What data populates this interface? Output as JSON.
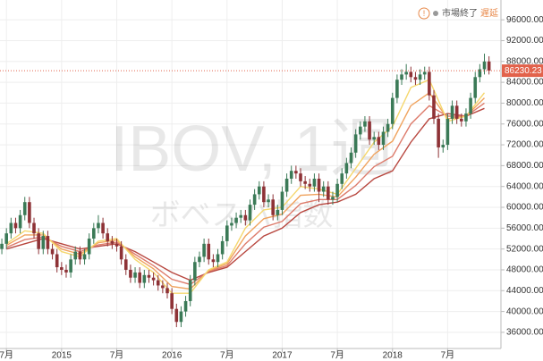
{
  "chart_data": {
    "type": "candlestick",
    "watermark": "IBOV, 1週",
    "watermark_sub": "ボベスパ指数",
    "alert_icon": "!",
    "status": "市場終了",
    "delay": "遅延",
    "up_color": "#3b7a57",
    "down_color": "#8e3236",
    "last_color": "#e2624b",
    "grid": true,
    "xlim": [
      -0.7,
      53.8
    ],
    "ylim": [
      32900,
      99800
    ],
    "xticks": [
      {
        "value": 0,
        "label": "7月"
      },
      {
        "value": 6,
        "label": "2015"
      },
      {
        "value": 12,
        "label": "7月"
      },
      {
        "value": 18,
        "label": "2016"
      },
      {
        "value": 24,
        "label": "7月"
      },
      {
        "value": 30,
        "label": "2017"
      },
      {
        "value": 36,
        "label": "7月"
      },
      {
        "value": 42,
        "label": "2018"
      },
      {
        "value": 48,
        "label": "7月"
      }
    ],
    "yticks": [
      {
        "value": 36000,
        "label": "36000.00"
      },
      {
        "value": 40000,
        "label": "40000.00"
      },
      {
        "value": 44000,
        "label": "44000.00"
      },
      {
        "value": 48000,
        "label": "48000.00"
      },
      {
        "value": 52000,
        "label": "52000.00"
      },
      {
        "value": 56000,
        "label": "56000.00"
      },
      {
        "value": 60000,
        "label": "60000.00"
      },
      {
        "value": 64000,
        "label": "64000.00"
      },
      {
        "value": 68000,
        "label": "68000.00"
      },
      {
        "value": 72000,
        "label": "72000.00"
      },
      {
        "value": 76000,
        "label": "76000.00"
      },
      {
        "value": 80000,
        "label": "80000.00"
      },
      {
        "value": 84000,
        "label": "84000.00"
      },
      {
        "value": 88000,
        "label": "88000.00"
      },
      {
        "value": 92000,
        "label": "92000.00"
      },
      {
        "value": 96000,
        "label": "96000.00"
      }
    ],
    "x": [
      -0.5,
      0,
      0.5,
      1,
      1.5,
      2,
      2.5,
      3,
      3.5,
      4,
      4.5,
      5,
      5.5,
      6,
      6.5,
      7,
      7.5,
      8,
      8.5,
      9,
      9.5,
      10,
      10.5,
      11,
      11.5,
      12,
      12.5,
      13,
      13.5,
      14,
      14.5,
      15,
      15.5,
      16,
      16.5,
      17,
      17.5,
      18,
      18.5,
      19,
      19.5,
      20,
      20.5,
      21,
      21.5,
      22,
      22.5,
      23,
      23.5,
      24,
      24.5,
      25,
      25.5,
      26,
      26.5,
      27,
      27.5,
      28,
      28.5,
      29,
      29.5,
      30,
      30.5,
      31,
      31.5,
      32,
      32.5,
      33,
      33.5,
      34,
      34.5,
      35,
      35.5,
      36,
      36.5,
      37,
      37.5,
      38,
      38.5,
      39,
      39.5,
      40,
      40.5,
      41,
      41.5,
      42,
      42.5,
      43,
      43.5,
      44,
      44.5,
      45,
      45.5,
      46,
      46.5,
      47,
      47.5,
      48,
      48.5,
      49,
      49.5,
      50,
      50.5,
      51,
      51.5,
      52,
      52.5
    ],
    "ohlc": [
      [
        52000,
        54000,
        51000,
        53000
      ],
      [
        53000,
        56000,
        52000,
        55000
      ],
      [
        55000,
        58000,
        54000,
        57000
      ],
      [
        57000,
        58000,
        55000,
        56000
      ],
      [
        56000,
        59500,
        55000,
        58500
      ],
      [
        58500,
        62000,
        57500,
        61000
      ],
      [
        61000,
        62000,
        56000,
        57000
      ],
      [
        57000,
        58000,
        54000,
        55000
      ],
      [
        55000,
        56000,
        51000,
        52000
      ],
      [
        52000,
        55500,
        51000,
        54500
      ],
      [
        54500,
        55500,
        51000,
        52000
      ],
      [
        52000,
        53000,
        50000,
        51000
      ],
      [
        51000,
        52000,
        47500,
        48500
      ],
      [
        48500,
        49500,
        47000,
        48000
      ],
      [
        48000,
        49000,
        46500,
        47500
      ],
      [
        47500,
        51000,
        46500,
        50000
      ],
      [
        50000,
        52500,
        49000,
        51500
      ],
      [
        51500,
        52500,
        49000,
        50000
      ],
      [
        50000,
        52000,
        49000,
        51000
      ],
      [
        51000,
        55000,
        50000,
        54000
      ],
      [
        54000,
        57000,
        53000,
        56000
      ],
      [
        56000,
        58500,
        55000,
        57000
      ],
      [
        57000,
        58000,
        54000,
        55000
      ],
      [
        55000,
        56000,
        52500,
        53500
      ],
      [
        53500,
        54500,
        52000,
        53000
      ],
      [
        53000,
        54000,
        51500,
        52500
      ],
      [
        52500,
        53500,
        49000,
        50000
      ],
      [
        50000,
        51000,
        47000,
        48000
      ],
      [
        48000,
        49000,
        45500,
        46500
      ],
      [
        46500,
        48500,
        45500,
        47500
      ],
      [
        47500,
        48500,
        44500,
        45500
      ],
      [
        45500,
        48000,
        44500,
        47000
      ],
      [
        47000,
        48000,
        45500,
        46500
      ],
      [
        46500,
        47500,
        45000,
        46000
      ],
      [
        46000,
        47000,
        44000,
        45000
      ],
      [
        45000,
        46000,
        43500,
        44500
      ],
      [
        44500,
        45500,
        42500,
        43500
      ],
      [
        43500,
        44500,
        39500,
        40500
      ],
      [
        40500,
        41500,
        37000,
        38000
      ],
      [
        38000,
        41000,
        37000,
        40000
      ],
      [
        40000,
        43000,
        39000,
        42000
      ],
      [
        42000,
        47000,
        41000,
        46000
      ],
      [
        46000,
        50500,
        45000,
        49500
      ],
      [
        49500,
        51500,
        48500,
        50500
      ],
      [
        50500,
        54000,
        49500,
        53000
      ],
      [
        53000,
        54000,
        49000,
        50000
      ],
      [
        50000,
        51000,
        48500,
        49500
      ],
      [
        49500,
        52000,
        48500,
        51000
      ],
      [
        51000,
        54500,
        50000,
        53500
      ],
      [
        53500,
        57500,
        52500,
        56500
      ],
      [
        56500,
        58000,
        55500,
        57000
      ],
      [
        57000,
        59000,
        56000,
        58000
      ],
      [
        58000,
        59500,
        57000,
        58500
      ],
      [
        58500,
        59500,
        56500,
        57500
      ],
      [
        57500,
        61500,
        56500,
        60500
      ],
      [
        60500,
        63500,
        59500,
        62500
      ],
      [
        62500,
        65000,
        61500,
        64000
      ],
      [
        64000,
        65000,
        60000,
        61000
      ],
      [
        61000,
        62500,
        60000,
        61500
      ],
      [
        61500,
        62500,
        57500,
        58500
      ],
      [
        58500,
        60500,
        57500,
        59500
      ],
      [
        59500,
        64000,
        58500,
        63000
      ],
      [
        63000,
        66500,
        62000,
        65500
      ],
      [
        65500,
        68000,
        64500,
        67000
      ],
      [
        67000,
        68000,
        65500,
        66500
      ],
      [
        66500,
        67500,
        64000,
        65000
      ],
      [
        65000,
        66000,
        63500,
        64500
      ],
      [
        64500,
        65500,
        63000,
        64000
      ],
      [
        64000,
        66500,
        63000,
        65500
      ],
      [
        65500,
        66500,
        61000,
        63000
      ],
      [
        63000,
        65000,
        62000,
        64000
      ],
      [
        64000,
        65000,
        60500,
        61500
      ],
      [
        61500,
        63000,
        60500,
        62000
      ],
      [
        62000,
        65500,
        61000,
        64500
      ],
      [
        64500,
        67500,
        63500,
        66500
      ],
      [
        66500,
        69500,
        65500,
        68500
      ],
      [
        68500,
        71500,
        67500,
        70500
      ],
      [
        70500,
        75000,
        69500,
        74000
      ],
      [
        74000,
        76500,
        73000,
        75500
      ],
      [
        75500,
        77500,
        74500,
        76500
      ],
      [
        76500,
        77500,
        72000,
        73000
      ],
      [
        73000,
        74500,
        72000,
        73500
      ],
      [
        73500,
        74500,
        71000,
        72000
      ],
      [
        72000,
        75500,
        71000,
        74500
      ],
      [
        74500,
        77000,
        73500,
        76000
      ],
      [
        76000,
        82000,
        75000,
        81000
      ],
      [
        81000,
        85500,
        80000,
        84500
      ],
      [
        84500,
        86500,
        83500,
        85500
      ],
      [
        85500,
        87500,
        84500,
        86000
      ],
      [
        86000,
        87000,
        84000,
        85000
      ],
      [
        85000,
        86000,
        83500,
        84500
      ],
      [
        84500,
        86500,
        83500,
        85500
      ],
      [
        85500,
        87000,
        84500,
        86000
      ],
      [
        86000,
        87000,
        80500,
        81500
      ],
      [
        81500,
        82500,
        76000,
        77000
      ],
      [
        77000,
        78000,
        69500,
        71500
      ],
      [
        71500,
        73000,
        70500,
        72000
      ],
      [
        72000,
        78000,
        71000,
        77000
      ],
      [
        77000,
        80500,
        76000,
        79500
      ],
      [
        79500,
        80500,
        76000,
        77000
      ],
      [
        77000,
        78000,
        75500,
        76500
      ],
      [
        76500,
        79000,
        75500,
        78000
      ],
      [
        78000,
        82000,
        77000,
        81000
      ],
      [
        81000,
        86000,
        80000,
        85000
      ],
      [
        85000,
        87500,
        84000,
        86500
      ],
      [
        86500,
        89500,
        85500,
        88000
      ],
      [
        88000,
        89000,
        85500,
        86230.23
      ]
    ],
    "ribbon_x": [
      0,
      2,
      4,
      6,
      8,
      10,
      12,
      14,
      16,
      18,
      20,
      22,
      24,
      26,
      28,
      30,
      32,
      34,
      36,
      38,
      40,
      42,
      44,
      46,
      48,
      50,
      52
    ],
    "ribbon": [
      {
        "color": "#b8473f",
        "values": [
          52000,
          53000,
          54000,
          53000,
          52000,
          52500,
          53000,
          51500,
          49500,
          47500,
          46000,
          47500,
          48500,
          51500,
          54500,
          56000,
          59000,
          60500,
          61000,
          62500,
          65500,
          67000,
          72500,
          77000,
          78000,
          77500,
          79000
        ]
      },
      {
        "color": "#dd7b6b",
        "values": [
          52300,
          53800,
          54300,
          52500,
          51500,
          52800,
          53300,
          51000,
          48800,
          46200,
          45200,
          47700,
          48800,
          53000,
          56200,
          57300,
          60700,
          61500,
          61500,
          64200,
          67800,
          69800,
          76000,
          79500,
          77500,
          77500,
          80000
        ]
      },
      {
        "color": "#f0a35e",
        "values": [
          52700,
          54700,
          54700,
          52000,
          51000,
          53200,
          53700,
          50500,
          48200,
          44800,
          44300,
          47800,
          49200,
          54500,
          57800,
          58700,
          62300,
          62500,
          62000,
          65800,
          70200,
          72700,
          79500,
          82000,
          77000,
          77500,
          81000
        ]
      },
      {
        "color": "#f5d76e",
        "values": [
          53000,
          55500,
          55000,
          51500,
          50500,
          53500,
          54000,
          50000,
          47500,
          43500,
          43500,
          48000,
          49500,
          56000,
          59500,
          60000,
          64000,
          63500,
          62500,
          67500,
          72500,
          75500,
          83000,
          84500,
          76500,
          77500,
          82000
        ]
      }
    ]
  }
}
